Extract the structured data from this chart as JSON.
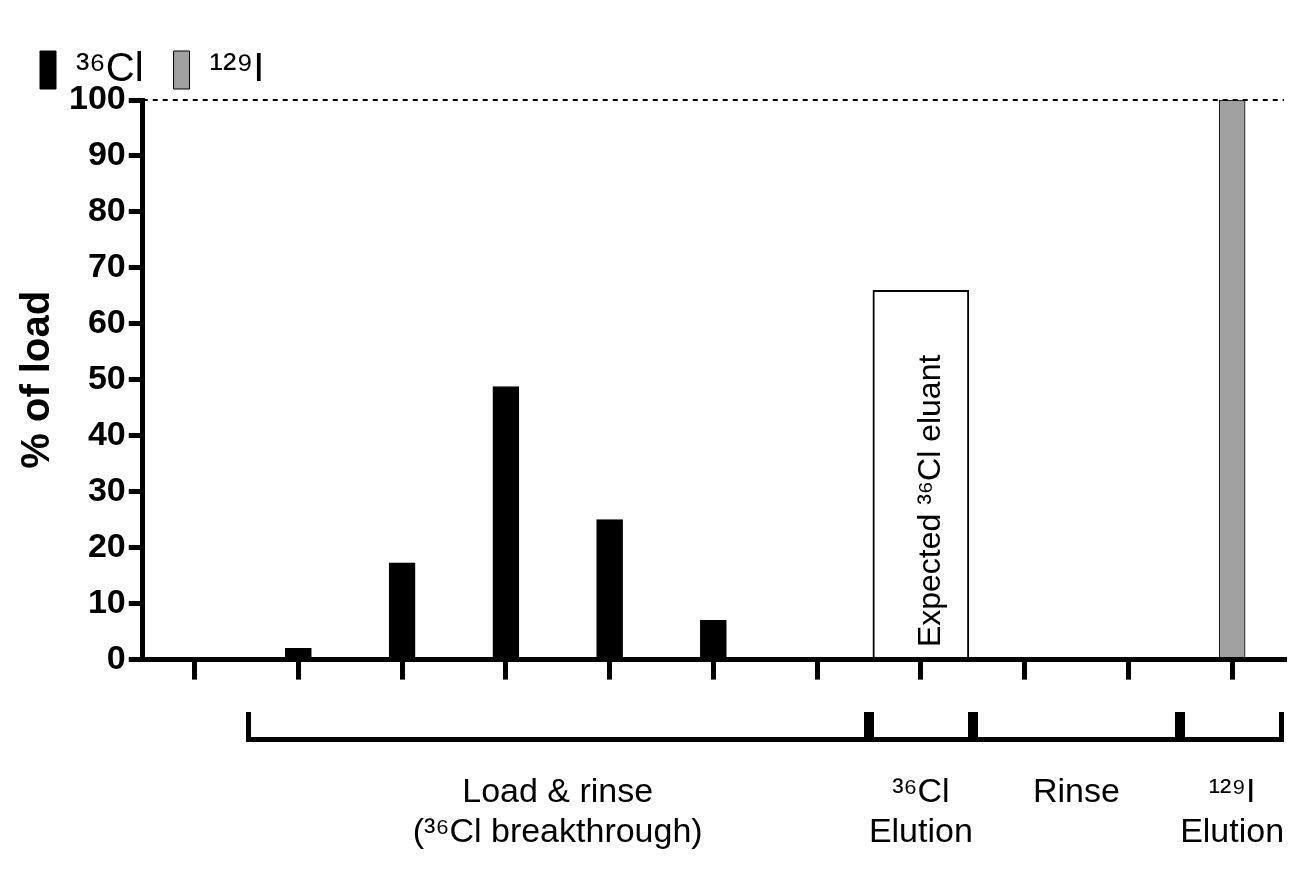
{
  "chart_data": {
    "type": "bar",
    "ylabel": "% of load",
    "categories": [
      null,
      null,
      null,
      null,
      null,
      null,
      null,
      null,
      null,
      null,
      null
    ],
    "series": [
      {
        "name": "³⁶Cl",
        "color": "#000000",
        "values": [
          null,
          2,
          17.3,
          48.8,
          25,
          7,
          0,
          0,
          0,
          0,
          null
        ]
      },
      {
        "name": "¹²⁹I",
        "color": "#a0a0a0",
        "values": [
          null,
          null,
          null,
          null,
          null,
          null,
          null,
          null,
          null,
          null,
          100
        ]
      },
      {
        "color": "#ffffff",
        "values": [
          null,
          null,
          null,
          null,
          null,
          null,
          null,
          66,
          null,
          null,
          null
        ]
      }
    ],
    "ylim": [
      0,
      100
    ],
    "yticks": [
      0,
      10,
      20,
      30,
      40,
      50,
      60,
      70,
      80,
      90,
      100
    ],
    "grid": false,
    "legend": "top left",
    "ref_lines": [
      {
        "axis": "y",
        "value": 100,
        "line_style": "dashed"
      }
    ],
    "annotations": [
      "Expected ³⁶Cl eluant",
      "Load & rinse\n(³⁶Cl breakthrough)",
      "³⁶Cl\nElution",
      "Rinse",
      "¹²⁹I\nElution"
    ]
  }
}
